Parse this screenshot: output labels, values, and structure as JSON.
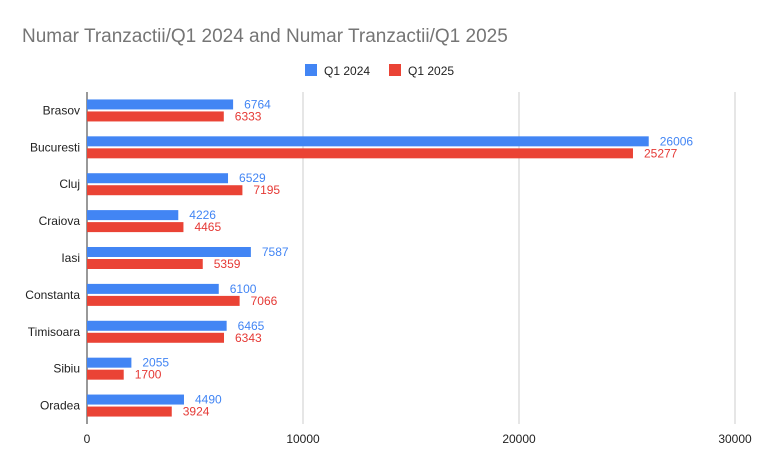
{
  "chart_data": {
    "type": "bar",
    "orientation": "horizontal",
    "title": "Numar Tranzactii/Q1 2024 and Numar Tranzactii/Q1 2025",
    "xlabel": "",
    "ylabel": "",
    "xlim": [
      0,
      30000
    ],
    "x_ticks": [
      "0",
      "10000",
      "20000",
      "30000"
    ],
    "x_tick_values": [
      0,
      10000,
      20000,
      30000
    ],
    "grid": true,
    "legend_position": "top",
    "categories": [
      "Brasov",
      "Bucuresti",
      "Cluj",
      "Craiova",
      "Iasi",
      "Constanta",
      "Timisoara",
      "Sibiu",
      "Oradea"
    ],
    "series": [
      {
        "name": "Q1 2024",
        "color": "#4285f4",
        "label_color": "#4285f4",
        "values": [
          6764,
          26006,
          6529,
          4226,
          7587,
          6100,
          6465,
          2055,
          4490
        ]
      },
      {
        "name": "Q1 2025",
        "color": "#ea4335",
        "label_color": "#e53935",
        "values": [
          6333,
          25277,
          7195,
          4465,
          5359,
          7066,
          6343,
          1700,
          3924
        ]
      }
    ]
  }
}
